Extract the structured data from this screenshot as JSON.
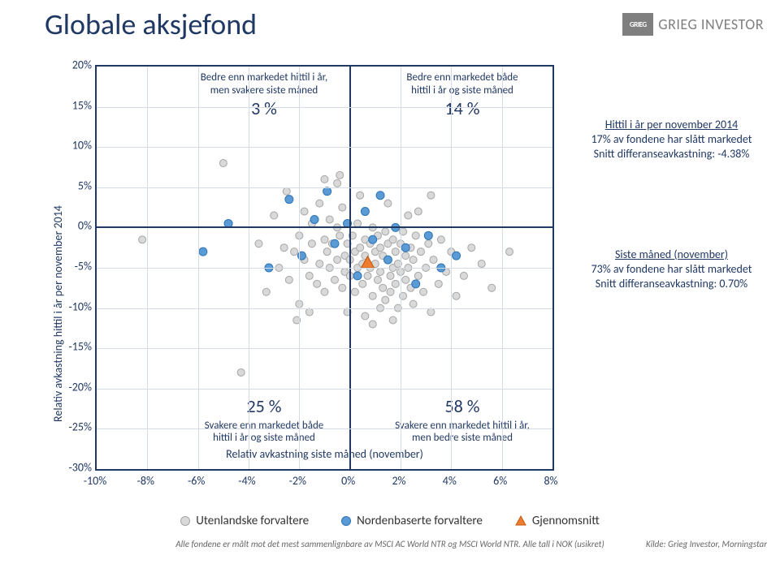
{
  "title": "Globale aksjefond",
  "brand": {
    "logo_text": "GRIEG",
    "name": "GRIEG INVESTOR"
  },
  "chart": {
    "type": "scatter",
    "xlim": [
      -10,
      8
    ],
    "ylim": [
      -30,
      20
    ],
    "xtick_step": 2,
    "ytick_step": 5,
    "xticks": [
      "-10%",
      "-8%",
      "-6%",
      "-4%",
      "-2%",
      "0%",
      "2%",
      "4%",
      "6%",
      "8%"
    ],
    "yticks": [
      "20%",
      "15%",
      "10%",
      "5%",
      "0%",
      "-5%",
      "-10%",
      "-15%",
      "-20%",
      "-25%",
      "-30%"
    ],
    "xaxis_title": "Relativ avkastning siste måned (november)",
    "yaxis_title": "Relativ avkastning hittil i år per november 2014",
    "grid_color": "#d6dce5",
    "axis_color": "#203864",
    "background_color": "#ffffff",
    "tick_fontsize": 14,
    "axis_title_fontsize": 14,
    "quadrants": {
      "top_left": {
        "text_l1": "Bedre enn markedet hittil i år,",
        "text_l2": "men svakere siste måned",
        "pct": "3 %"
      },
      "top_right": {
        "text_l1": "Bedre enn markedet både",
        "text_l2": "hittil i år og siste måned",
        "pct": "14 %"
      },
      "bottom_left": {
        "text_l1": "Svakere enn markedet både",
        "text_l2": "hittil i år og siste måned",
        "pct": "25 %"
      },
      "bottom_right": {
        "text_l1": "Svakere enn markedet hittil i år,",
        "text_l2": "men bedre siste måned",
        "pct": "58 %"
      }
    },
    "series": {
      "foreign": {
        "label": "Utenlandske forvaltere",
        "fill": "#d9d9d9",
        "stroke": "#a6a6a6",
        "r": 4.5,
        "points": [
          [
            -8.2,
            -1.5
          ],
          [
            -5.0,
            8.0
          ],
          [
            -4.3,
            -18.0
          ],
          [
            -3.6,
            -2.0
          ],
          [
            -3.3,
            -8.0
          ],
          [
            -3.0,
            1.5
          ],
          [
            -2.8,
            -5.0
          ],
          [
            -2.6,
            -2.5
          ],
          [
            -2.5,
            4.5
          ],
          [
            -2.4,
            -6.5
          ],
          [
            -2.2,
            -3.0
          ],
          [
            -2.0,
            -1.0
          ],
          [
            -2.0,
            -9.5
          ],
          [
            -1.8,
            2.0
          ],
          [
            -1.8,
            -4.0
          ],
          [
            -1.6,
            -6.0
          ],
          [
            -1.5,
            0.5
          ],
          [
            -1.5,
            -2.0
          ],
          [
            -1.3,
            -7.0
          ],
          [
            -1.2,
            3.0
          ],
          [
            -1.2,
            -4.5
          ],
          [
            -1.0,
            -1.5
          ],
          [
            -1.0,
            -8.0
          ],
          [
            -0.9,
            -3.0
          ],
          [
            -0.8,
            1.0
          ],
          [
            -0.8,
            -5.0
          ],
          [
            -0.7,
            -2.0
          ],
          [
            -0.6,
            -6.5
          ],
          [
            -0.5,
            0.0
          ],
          [
            -0.5,
            -4.0
          ],
          [
            -0.4,
            -1.0
          ],
          [
            -0.3,
            -7.5
          ],
          [
            -0.3,
            2.5
          ],
          [
            -0.2,
            -3.5
          ],
          [
            -0.2,
            -5.5
          ],
          [
            -0.1,
            -2.0
          ],
          [
            0.0,
            -4.0
          ],
          [
            0.0,
            -6.0
          ],
          [
            0.1,
            -1.0
          ],
          [
            0.2,
            -3.0
          ],
          [
            0.2,
            -8.0
          ],
          [
            0.3,
            0.5
          ],
          [
            0.3,
            -5.0
          ],
          [
            0.4,
            -2.5
          ],
          [
            0.5,
            -4.5
          ],
          [
            0.5,
            -7.0
          ],
          [
            0.6,
            -1.5
          ],
          [
            0.6,
            -3.5
          ],
          [
            0.7,
            -6.0
          ],
          [
            0.8,
            -2.0
          ],
          [
            0.8,
            -5.0
          ],
          [
            0.9,
            -8.5
          ],
          [
            0.9,
            0.0
          ],
          [
            1.0,
            -3.0
          ],
          [
            1.0,
            -4.5
          ],
          [
            1.1,
            -6.5
          ],
          [
            1.1,
            -1.0
          ],
          [
            1.2,
            -2.5
          ],
          [
            1.2,
            -5.5
          ],
          [
            1.3,
            -7.5
          ],
          [
            1.3,
            -3.5
          ],
          [
            1.4,
            -0.5
          ],
          [
            1.4,
            -9.0
          ],
          [
            1.5,
            -4.0
          ],
          [
            1.5,
            -2.0
          ],
          [
            1.6,
            -6.0
          ],
          [
            1.6,
            -8.0
          ],
          [
            1.7,
            -1.5
          ],
          [
            1.7,
            -5.0
          ],
          [
            1.8,
            -3.0
          ],
          [
            1.8,
            -7.0
          ],
          [
            1.9,
            -4.5
          ],
          [
            1.9,
            -10.0
          ],
          [
            2.0,
            -2.0
          ],
          [
            2.0,
            -5.5
          ],
          [
            2.1,
            -8.5
          ],
          [
            2.1,
            -0.5
          ],
          [
            2.2,
            -3.5
          ],
          [
            2.2,
            -6.5
          ],
          [
            2.3,
            -5.0
          ],
          [
            2.4,
            -2.5
          ],
          [
            2.4,
            -7.5
          ],
          [
            2.5,
            -4.0
          ],
          [
            2.5,
            -9.5
          ],
          [
            2.6,
            -1.0
          ],
          [
            2.7,
            -6.0
          ],
          [
            2.8,
            -3.0
          ],
          [
            2.9,
            -8.0
          ],
          [
            3.0,
            -5.0
          ],
          [
            3.1,
            -2.0
          ],
          [
            3.2,
            -10.5
          ],
          [
            3.3,
            -4.0
          ],
          [
            3.5,
            -7.0
          ],
          [
            3.6,
            -1.5
          ],
          [
            3.8,
            -5.5
          ],
          [
            4.0,
            -3.0
          ],
          [
            4.2,
            -8.5
          ],
          [
            4.5,
            -6.0
          ],
          [
            4.8,
            -2.5
          ],
          [
            5.2,
            -4.5
          ],
          [
            5.6,
            -7.5
          ],
          [
            6.3,
            -3.0
          ],
          [
            -0.1,
            -10.5
          ],
          [
            0.6,
            -11.0
          ],
          [
            1.2,
            -10.0
          ],
          [
            -1.0,
            6.0
          ],
          [
            0.4,
            4.0
          ],
          [
            1.5,
            3.0
          ],
          [
            2.3,
            1.5
          ],
          [
            -0.5,
            5.5
          ],
          [
            -1.6,
            -10.5
          ],
          [
            2.7,
            2.0
          ],
          [
            3.2,
            4.0
          ],
          [
            -2.1,
            -11.5
          ],
          [
            0.9,
            -12.0
          ],
          [
            1.7,
            -11.5
          ],
          [
            -0.4,
            6.5
          ]
        ]
      },
      "nordic": {
        "label": "Nordenbaserte forvaltere",
        "fill": "#5b9bd5",
        "stroke": "#2e75b6",
        "r": 5,
        "points": [
          [
            -5.8,
            -3.0
          ],
          [
            -4.8,
            0.5
          ],
          [
            -3.2,
            -5.0
          ],
          [
            -2.4,
            3.5
          ],
          [
            -1.9,
            -3.5
          ],
          [
            -1.4,
            1.0
          ],
          [
            -0.9,
            4.5
          ],
          [
            -0.6,
            -2.0
          ],
          [
            -0.1,
            0.5
          ],
          [
            0.3,
            -6.0
          ],
          [
            0.6,
            2.0
          ],
          [
            0.9,
            -1.5
          ],
          [
            1.2,
            4.0
          ],
          [
            1.5,
            -4.0
          ],
          [
            1.8,
            0.0
          ],
          [
            2.2,
            -2.5
          ],
          [
            2.6,
            -7.0
          ],
          [
            3.1,
            -1.0
          ],
          [
            3.6,
            -5.0
          ],
          [
            4.2,
            -3.5
          ]
        ]
      },
      "average": {
        "label": "Gjennomsnitt",
        "fill": "#ed7d31",
        "stroke": "#c55a11",
        "shape": "triangle",
        "size": 16,
        "point": [
          0.7,
          -4.38
        ]
      }
    }
  },
  "sideboxes": {
    "top": {
      "headline": "Hittil i år per november 2014",
      "line2": "17% av fondene har slått markedet",
      "line3": "Snitt differanseavkastning: -4.38%"
    },
    "bottom": {
      "headline": "Siste måned (november)",
      "line2": "73% av fondene har slått markedet",
      "line3": "Snitt differanseavkastning: 0.70%"
    }
  },
  "footnote": "Alle fondene er målt mot det mest sammenlignbare av MSCI AC World NTR og MSCI World NTR. Alle tall i NOK (usikret)",
  "source": "Kilde: Grieg Investor, Morningstar"
}
